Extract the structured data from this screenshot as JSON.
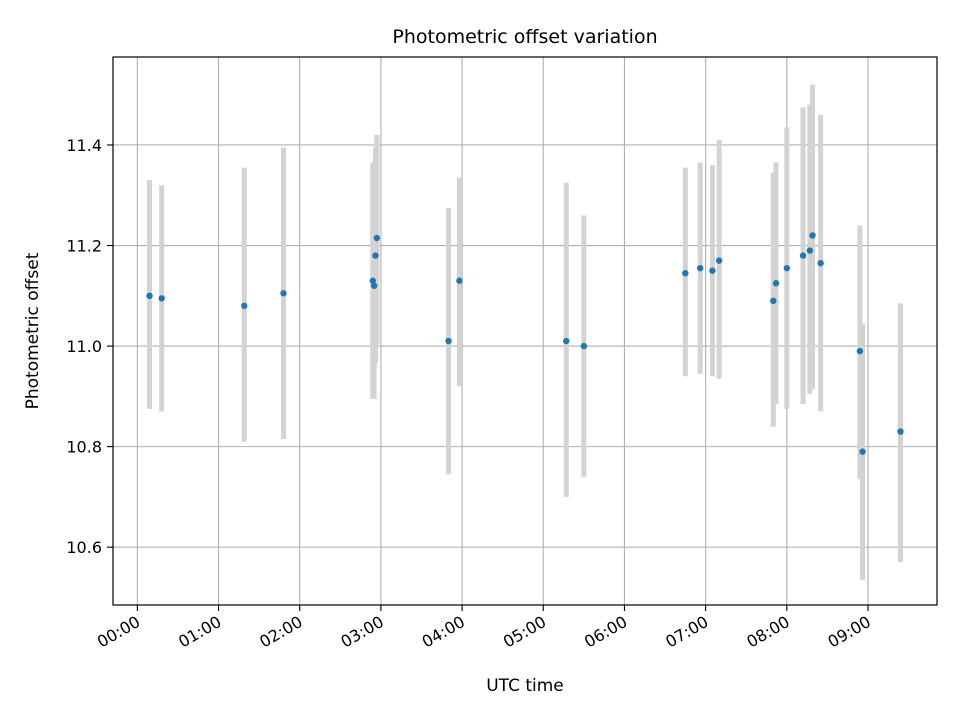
{
  "chart_data": {
    "type": "scatter",
    "title": "Photometric offset variation",
    "xlabel": "UTC time",
    "ylabel": "Photometric offset",
    "grid": true,
    "x_unit": "UTC time (HH:MM)",
    "xlim": [
      "23:42",
      "09:51"
    ],
    "ylim": [
      10.485,
      11.575
    ],
    "x_ticks": [
      "00:00",
      "01:00",
      "02:00",
      "03:00",
      "04:00",
      "05:00",
      "06:00",
      "07:00",
      "08:00",
      "09:00"
    ],
    "y_ticks": [
      "10.6",
      "10.8",
      "11.0",
      "11.2",
      "11.4"
    ],
    "colors": {
      "point": "#1f77b4",
      "errorbar": "#d3d3d3",
      "grid": "#b0b0b0"
    },
    "points": [
      {
        "x": "00:09",
        "y": 11.1,
        "ylow": 10.875,
        "yhigh": 11.33
      },
      {
        "x": "00:18",
        "y": 11.095,
        "ylow": 10.87,
        "yhigh": 11.32
      },
      {
        "x": "01:19",
        "y": 11.08,
        "ylow": 10.81,
        "yhigh": 11.355
      },
      {
        "x": "01:48",
        "y": 11.105,
        "ylow": 10.815,
        "yhigh": 11.395
      },
      {
        "x": "02:54",
        "y": 11.13,
        "ylow": 10.895,
        "yhigh": 11.365
      },
      {
        "x": "02:55",
        "y": 11.12,
        "ylow": 10.895,
        "yhigh": 11.345
      },
      {
        "x": "02:56",
        "y": 11.18,
        "ylow": 10.965,
        "yhigh": 11.395
      },
      {
        "x": "02:57",
        "y": 11.215,
        "ylow": 11.005,
        "yhigh": 11.42
      },
      {
        "x": "03:50",
        "y": 11.01,
        "ylow": 10.745,
        "yhigh": 11.275
      },
      {
        "x": "03:58",
        "y": 11.13,
        "ylow": 10.92,
        "yhigh": 11.335
      },
      {
        "x": "05:17",
        "y": 11.01,
        "ylow": 10.7,
        "yhigh": 11.325
      },
      {
        "x": "05:30",
        "y": 11.0,
        "ylow": 10.74,
        "yhigh": 11.26
      },
      {
        "x": "06:45",
        "y": 11.145,
        "ylow": 10.94,
        "yhigh": 11.355
      },
      {
        "x": "06:56",
        "y": 11.155,
        "ylow": 10.945,
        "yhigh": 11.365
      },
      {
        "x": "07:05",
        "y": 11.15,
        "ylow": 10.94,
        "yhigh": 11.36
      },
      {
        "x": "07:10",
        "y": 11.17,
        "ylow": 10.935,
        "yhigh": 11.41
      },
      {
        "x": "07:50",
        "y": 11.09,
        "ylow": 10.84,
        "yhigh": 11.345
      },
      {
        "x": "07:52",
        "y": 11.125,
        "ylow": 10.885,
        "yhigh": 11.365
      },
      {
        "x": "08:00",
        "y": 11.155,
        "ylow": 10.875,
        "yhigh": 11.435
      },
      {
        "x": "08:12",
        "y": 11.18,
        "ylow": 10.885,
        "yhigh": 11.475
      },
      {
        "x": "08:17",
        "y": 11.19,
        "ylow": 10.905,
        "yhigh": 11.48
      },
      {
        "x": "08:19",
        "y": 11.22,
        "ylow": 10.915,
        "yhigh": 11.52
      },
      {
        "x": "08:25",
        "y": 11.165,
        "ylow": 10.87,
        "yhigh": 11.46
      },
      {
        "x": "08:54",
        "y": 10.99,
        "ylow": 10.735,
        "yhigh": 11.24
      },
      {
        "x": "08:56",
        "y": 10.79,
        "ylow": 10.535,
        "yhigh": 11.045
      },
      {
        "x": "09:24",
        "y": 10.83,
        "ylow": 10.57,
        "yhigh": 11.085
      }
    ]
  }
}
